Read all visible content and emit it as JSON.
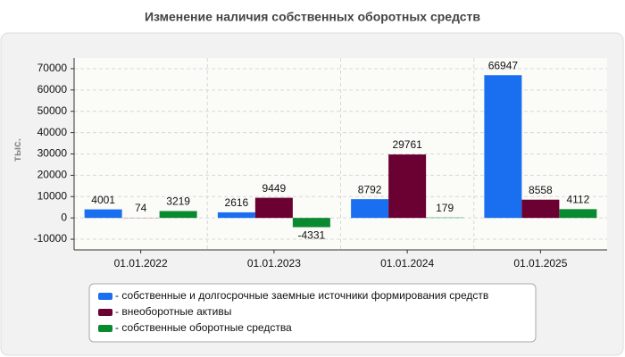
{
  "chart_data": {
    "type": "bar",
    "title": "Изменение наличия собственных оборотных средств",
    "y_label": "тыс.",
    "categories": [
      "01.01.2022",
      "01.01.2023",
      "01.01.2024",
      "01.01.2025"
    ],
    "series": [
      {
        "name": "- собственные и долгосрочные заемные источники формирования средств",
        "color": "#1a6ff0",
        "values": [
          4001,
          2616,
          8792,
          66947
        ]
      },
      {
        "name": "- внеоборотные активы",
        "color": "#6b0032",
        "values": [
          74,
          9449,
          29761,
          8558
        ]
      },
      {
        "name": "- собственные оборотные средства",
        "color": "#0a8a30",
        "values": [
          3219,
          -4331,
          179,
          4112
        ]
      }
    ],
    "ylim": [
      -15000,
      75000
    ],
    "yticks": [
      -10000,
      0,
      10000,
      20000,
      30000,
      40000,
      50000,
      60000,
      70000
    ],
    "grid": true
  }
}
